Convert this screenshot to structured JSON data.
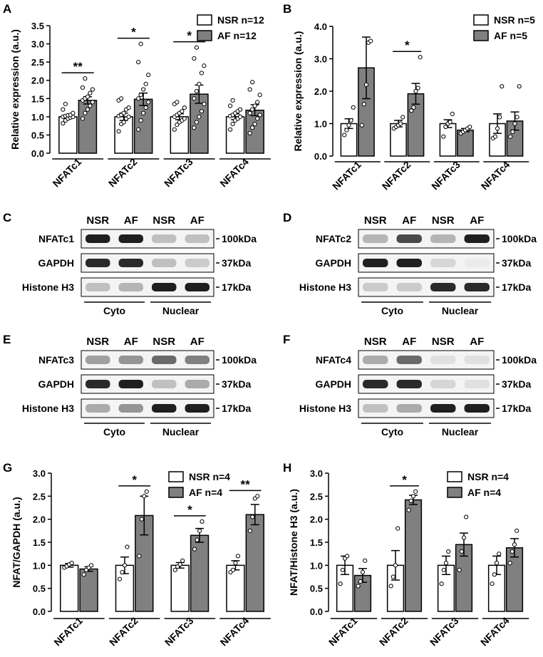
{
  "panel_letters": {
    "A": "A",
    "B": "B",
    "C": "C",
    "D": "D",
    "E": "E",
    "F": "F",
    "G": "G",
    "H": "H"
  },
  "colors": {
    "nsr": "#ffffff",
    "af": "#808080",
    "axis": "#000000"
  },
  "chart_data": [
    {
      "id": "A",
      "type": "bar",
      "ylabel": "Relative expression (a.u.)",
      "ylim": [
        0,
        3.5
      ],
      "yticks": [
        "0.0",
        "0.5",
        "1.0",
        "1.5",
        "2.0",
        "2.5",
        "3.0",
        "3.5"
      ],
      "categories": [
        "NFATc1",
        "NFATc2",
        "NFATc3",
        "NFATc4"
      ],
      "series": [
        {
          "name": "NSR n=12",
          "values": [
            1.0,
            1.0,
            1.0,
            1.0
          ],
          "sem": [
            0.05,
            0.1,
            0.08,
            0.08
          ],
          "points": [
            [
              0.82,
              0.9,
              0.95,
              0.98,
              1.0,
              1.0,
              1.02,
              1.04,
              1.05,
              1.1,
              1.2,
              1.35
            ],
            [
              0.6,
              0.8,
              0.85,
              0.95,
              1.0,
              1.02,
              1.05,
              1.1,
              1.2,
              1.25,
              1.45,
              1.5
            ],
            [
              0.65,
              0.78,
              0.85,
              0.9,
              0.95,
              1.0,
              1.05,
              1.1,
              1.15,
              1.25,
              1.35,
              1.4
            ],
            [
              0.65,
              0.8,
              0.9,
              0.95,
              1.0,
              1.02,
              1.05,
              1.1,
              1.15,
              1.2,
              1.3,
              1.45
            ]
          ]
        },
        {
          "name": "AF n=12",
          "values": [
            1.45,
            1.48,
            1.62,
            1.18
          ],
          "sem": [
            0.1,
            0.17,
            0.25,
            0.15
          ],
          "points": [
            [
              0.95,
              1.1,
              1.2,
              1.3,
              1.4,
              1.45,
              1.5,
              1.55,
              1.65,
              1.75,
              1.8,
              2.05
            ],
            [
              0.65,
              0.9,
              1.1,
              1.25,
              1.4,
              1.5,
              1.6,
              1.75,
              1.9,
              2.15,
              2.5,
              3.0
            ],
            [
              0.7,
              0.85,
              1.0,
              1.15,
              1.35,
              1.5,
              1.7,
              1.9,
              2.2,
              2.4,
              2.6,
              2.9
            ],
            [
              0.55,
              0.7,
              0.8,
              0.95,
              1.05,
              1.1,
              1.2,
              1.3,
              1.4,
              1.6,
              1.75,
              1.95
            ]
          ]
        }
      ],
      "significance": [
        {
          "index": 0,
          "label": "**"
        },
        {
          "index": 1,
          "label": "*"
        },
        {
          "index": 2,
          "label": "*"
        }
      ],
      "legend_position": "top-right"
    },
    {
      "id": "B",
      "type": "bar",
      "ylabel": "Relative expression (a.u.)",
      "ylim": [
        0,
        4.0
      ],
      "yticks": [
        "0.0",
        "1.0",
        "2.0",
        "3.0",
        "4.0"
      ],
      "categories": [
        "NFATc1",
        "NFATc2",
        "NFATc3",
        "NFATc4"
      ],
      "series": [
        {
          "name": "NSR n=5",
          "values": [
            1.0,
            1.0,
            1.0,
            1.0
          ],
          "sem": [
            0.15,
            0.1,
            0.12,
            0.3
          ],
          "points": [
            [
              0.65,
              0.8,
              0.95,
              1.1,
              1.5
            ],
            [
              0.85,
              0.9,
              0.95,
              1.0,
              1.2
            ],
            [
              0.6,
              0.9,
              1.0,
              1.05,
              1.3
            ],
            [
              0.55,
              0.6,
              0.85,
              1.2,
              2.15
            ]
          ]
        },
        {
          "name": "AF n=5",
          "values": [
            2.72,
            1.92,
            0.8,
            1.08
          ],
          "sem": [
            0.95,
            0.32,
            0.05,
            0.28
          ],
          "points": [
            [
              0.95,
              1.6,
              2.2,
              3.5,
              3.55
            ],
            [
              1.4,
              1.5,
              2.0,
              2.1,
              3.05
            ],
            [
              0.7,
              0.75,
              0.8,
              0.85,
              0.9
            ],
            [
              0.6,
              0.75,
              1.0,
              1.2,
              2.15
            ]
          ]
        }
      ],
      "significance": [
        {
          "index": 1,
          "label": "*"
        }
      ],
      "legend_position": "top-right"
    },
    {
      "id": "G",
      "type": "bar",
      "ylabel": "NFAT/GAPDH (a.u.)",
      "ylim": [
        0,
        3.0
      ],
      "yticks": [
        "0.0",
        "0.5",
        "1.0",
        "1.5",
        "2.0",
        "2.5",
        "3.0"
      ],
      "categories": [
        "NFATc1",
        "NFATc2",
        "NFATc3",
        "NFATc4"
      ],
      "series": [
        {
          "name": "NSR n=4",
          "values": [
            1.0,
            1.0,
            1.0,
            1.0
          ],
          "sem": [
            0.04,
            0.18,
            0.06,
            0.1
          ],
          "points": [
            [
              0.95,
              0.98,
              1.02,
              1.05
            ],
            [
              0.7,
              0.85,
              1.0,
              1.4
            ],
            [
              0.9,
              0.97,
              1.02,
              1.1
            ],
            [
              0.85,
              0.9,
              1.05,
              1.2
            ]
          ]
        },
        {
          "name": "AF n=4",
          "values": [
            0.92,
            2.08,
            1.65,
            2.1
          ],
          "sem": [
            0.05,
            0.42,
            0.15,
            0.22
          ],
          "points": [
            [
              0.8,
              0.9,
              0.95,
              1.0
            ],
            [
              1.2,
              2.0,
              2.5,
              2.6
            ],
            [
              1.35,
              1.55,
              1.75,
              1.95
            ],
            [
              1.75,
              2.05,
              2.45,
              2.5
            ]
          ]
        }
      ],
      "significance": [
        {
          "index": 1,
          "label": "*"
        },
        {
          "index": 2,
          "label": "*"
        },
        {
          "index": 3,
          "label": "**"
        }
      ],
      "legend_position": "top-right"
    },
    {
      "id": "H",
      "type": "bar",
      "ylabel": "NFAT/Histone H3 (a.u.)",
      "ylim": [
        0,
        3.0
      ],
      "yticks": [
        "0.0",
        "0.5",
        "1.0",
        "1.5",
        "2.0",
        "2.5",
        "3.0"
      ],
      "categories": [
        "NFATc1",
        "NFATc2",
        "NFATc3",
        "NFATc4"
      ],
      "series": [
        {
          "name": "NSR n=4",
          "values": [
            1.0,
            1.0,
            1.0,
            1.0
          ],
          "sem": [
            0.2,
            0.32,
            0.2,
            0.2
          ],
          "points": [
            [
              0.6,
              0.9,
              1.15,
              1.2
            ],
            [
              0.55,
              0.75,
              1.0,
              1.8
            ],
            [
              0.6,
              0.9,
              1.05,
              1.3
            ],
            [
              0.6,
              0.8,
              1.05,
              1.25
            ]
          ]
        },
        {
          "name": "AF n=4",
          "values": [
            0.78,
            2.42,
            1.45,
            1.38
          ],
          "sem": [
            0.15,
            0.1,
            0.25,
            0.2
          ],
          "points": [
            [
              0.55,
              0.65,
              0.85,
              1.1
            ],
            [
              2.2,
              2.4,
              2.5,
              2.6
            ],
            [
              0.9,
              1.3,
              1.6,
              2.05
            ],
            [
              1.05,
              1.3,
              1.45,
              1.75
            ]
          ]
        }
      ],
      "significance": [
        {
          "index": 1,
          "label": "*"
        }
      ],
      "legend_position": "top-right"
    }
  ],
  "blots": [
    {
      "id": "C",
      "lanes": [
        "NSR",
        "AF",
        "NSR",
        "AF"
      ],
      "rows": [
        {
          "label": "NFATc1",
          "size": "100kDa",
          "intensity": [
            0.95,
            0.95,
            0.2,
            0.2
          ]
        },
        {
          "label": "GAPDH",
          "size": "37kDa",
          "intensity": [
            0.9,
            0.9,
            0.2,
            0.15
          ]
        },
        {
          "label": "Histone H3",
          "size": "17kDa",
          "intensity": [
            0.2,
            0.25,
            0.95,
            0.95
          ]
        }
      ],
      "fractions": [
        "Cyto",
        "Nuclear"
      ]
    },
    {
      "id": "D",
      "lanes": [
        "NSR",
        "AF",
        "NSR",
        "AF"
      ],
      "rows": [
        {
          "label": "NFATc2",
          "size": "100kDa",
          "intensity": [
            0.25,
            0.75,
            0.25,
            0.95
          ]
        },
        {
          "label": "GAPDH",
          "size": "37kDa",
          "intensity": [
            0.95,
            0.95,
            0.1,
            0.0
          ]
        },
        {
          "label": "Histone H3",
          "size": "17kDa",
          "intensity": [
            0.15,
            0.15,
            0.9,
            0.9
          ]
        }
      ],
      "fractions": [
        "Cyto",
        "Nuclear"
      ]
    },
    {
      "id": "E",
      "lanes": [
        "NSR",
        "AF",
        "NSR",
        "AF"
      ],
      "rows": [
        {
          "label": "NFATc3",
          "size": "100kDa",
          "intensity": [
            0.35,
            0.4,
            0.6,
            0.5
          ]
        },
        {
          "label": "GAPDH",
          "size": "37kDa",
          "intensity": [
            0.9,
            0.95,
            0.2,
            0.3
          ]
        },
        {
          "label": "Histone H3",
          "size": "17kDa",
          "intensity": [
            0.3,
            0.4,
            0.95,
            0.95
          ]
        }
      ],
      "fractions": [
        "Cyto",
        "Nuclear"
      ]
    },
    {
      "id": "F",
      "lanes": [
        "NSR",
        "AF",
        "NSR",
        "AF"
      ],
      "rows": [
        {
          "label": "NFATc4",
          "size": "100kDa",
          "intensity": [
            0.3,
            0.6,
            0.05,
            0.05
          ]
        },
        {
          "label": "GAPDH",
          "size": "37kDa",
          "intensity": [
            0.9,
            0.9,
            0.1,
            0.05
          ]
        },
        {
          "label": "Histone H3",
          "size": "17kDa",
          "intensity": [
            0.2,
            0.3,
            0.95,
            0.95
          ]
        }
      ],
      "fractions": [
        "Cyto",
        "Nuclear"
      ]
    }
  ]
}
